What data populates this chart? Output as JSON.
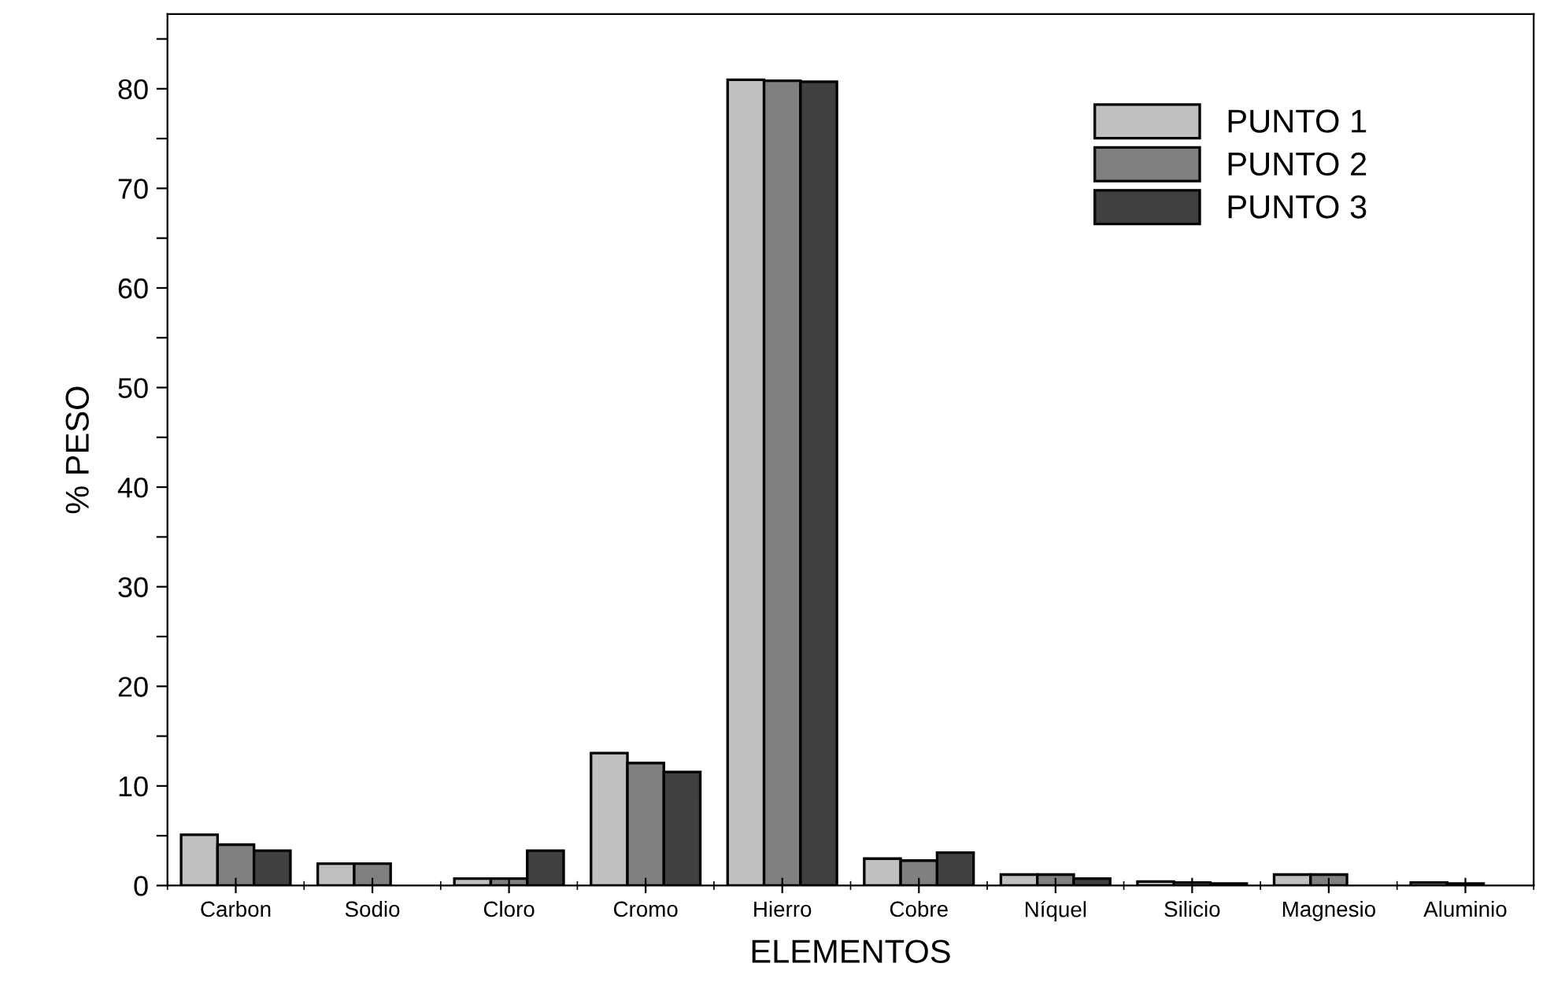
{
  "chart_data": {
    "type": "bar",
    "xlabel": "ELEMENTOS",
    "ylabel": "% PESO",
    "categories": [
      "Carbon",
      "Sodio",
      "Cloro",
      "Cromo",
      "Hierro",
      "Cobre",
      "Níquel",
      "Silicio",
      "Magnesio",
      "Aluminio"
    ],
    "series": [
      {
        "name": "PUNTO 1",
        "color": "#c0c0c0",
        "values": [
          5.1,
          2.2,
          0.7,
          13.3,
          80.9,
          2.7,
          1.1,
          0.4,
          1.1,
          0.3
        ]
      },
      {
        "name": "PUNTO 2",
        "color": "#808080",
        "values": [
          4.1,
          2.2,
          0.7,
          12.3,
          80.8,
          2.5,
          1.1,
          0.3,
          1.1,
          0.2
        ]
      },
      {
        "name": "PUNTO 3",
        "color": "#404040",
        "values": [
          3.5,
          null,
          3.5,
          11.4,
          80.7,
          3.3,
          0.7,
          0.2,
          null,
          null
        ]
      }
    ],
    "ylim": [
      0,
      87.5
    ],
    "yticks": [
      0,
      {
        "value": 5,
        "label": null
      },
      10,
      {
        "value": 15,
        "label": null
      },
      20,
      {
        "value": 25,
        "label": null
      },
      30,
      {
        "value": 35,
        "label": null
      },
      40,
      {
        "value": 45,
        "label": null
      },
      50,
      {
        "value": 55,
        "label": null
      },
      60,
      {
        "value": 65,
        "label": null
      },
      70,
      {
        "value": 75,
        "label": null
      },
      80,
      {
        "value": 85,
        "label": null
      }
    ],
    "grid": false,
    "legend": "top right"
  }
}
